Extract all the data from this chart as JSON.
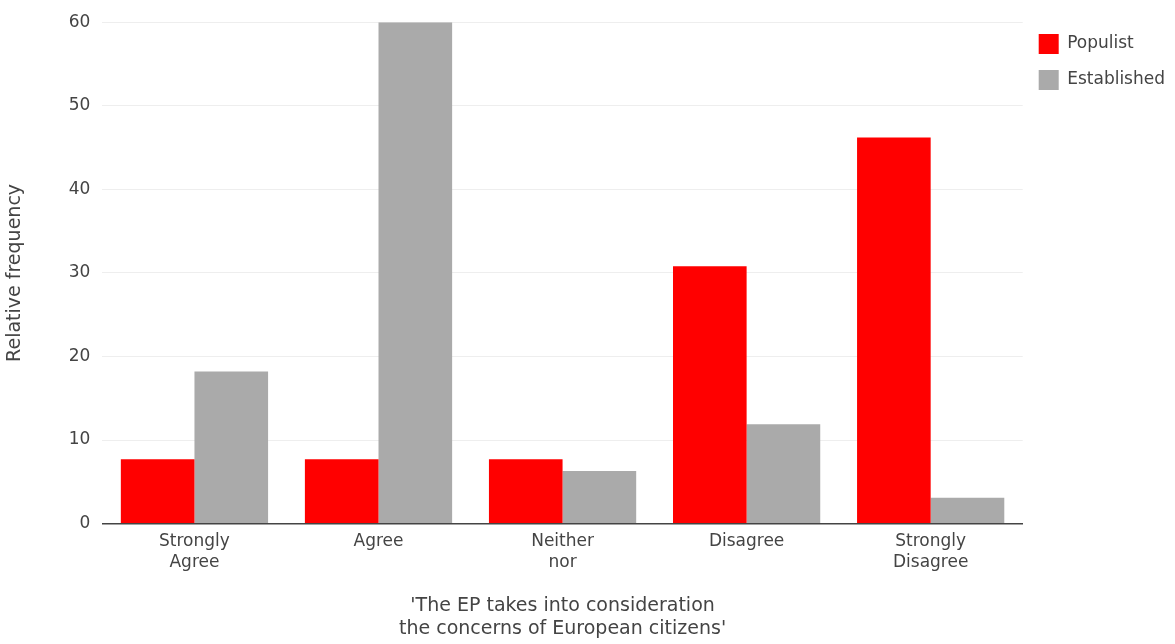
{
  "chart_data": {
    "type": "bar",
    "xlabel": "'The EP takes into consideration the concerns of European citizens'",
    "ylabel": "Relative frequency",
    "categories": [
      "Strongly Agree",
      "Agree",
      "Neither nor",
      "Disagree",
      "Strongly Disagree"
    ],
    "series": [
      {
        "name": "Populist",
        "color": "#ff0000",
        "values": [
          7.7,
          7.7,
          7.7,
          30.8,
          46.2
        ]
      },
      {
        "name": "Established",
        "color": "#aaaaaa",
        "values": [
          18.2,
          60,
          6.3,
          11.9,
          3.1
        ]
      }
    ],
    "ylim": [
      0,
      60
    ],
    "yticks": [
      0,
      10,
      20,
      30,
      40,
      50,
      60
    ],
    "grid": "y",
    "legend": "top right"
  }
}
